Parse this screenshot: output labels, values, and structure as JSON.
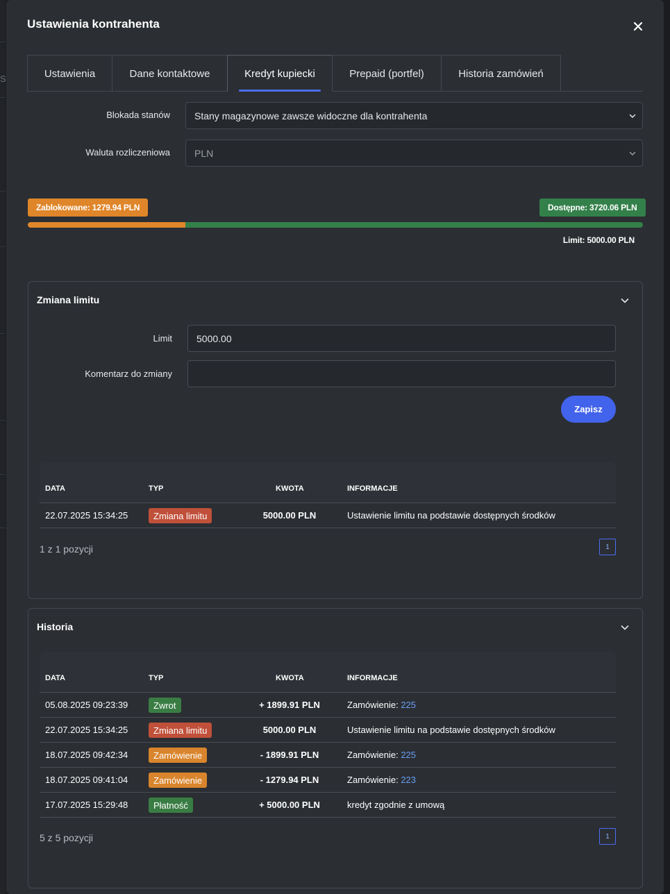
{
  "modal": {
    "title": "Ustawienia kontrahenta",
    "backdrop_text": "St"
  },
  "tabs": [
    {
      "label": "Ustawienia",
      "active": false
    },
    {
      "label": "Dane kontaktowe",
      "active": false
    },
    {
      "label": "Kredyt kupiecki",
      "active": true
    },
    {
      "label": "Prepaid (portfel)",
      "active": false
    },
    {
      "label": "Historia zamówień",
      "active": false
    }
  ],
  "settings": {
    "stock_lock_label": "Blokada stanów",
    "stock_lock_value": "Stany magazynowe zawsze widoczne dla kontrahenta",
    "currency_label": "Waluta rozliczeniowa",
    "currency_value": "PLN"
  },
  "credit": {
    "blocked_label": "Zablokowane: 1279.94 PLN",
    "available_label": "Dostępne: 3720.06 PLN",
    "limit_label": "Limit: 5000.00 PLN",
    "blocked_fraction": 0.256,
    "colors": {
      "blocked": "#e0862a",
      "available": "#34804a"
    }
  },
  "limit_change": {
    "title": "Zmiana limitu",
    "limit_label": "Limit",
    "limit_value": "5000.00",
    "comment_label": "Komentarz do zmiany",
    "comment_value": "",
    "save_label": "Zapisz",
    "table": {
      "headers": [
        "DATA",
        "TYP",
        "KWOTA",
        "INFORMACJE"
      ],
      "rows": [
        {
          "date": "22.07.2025 15:34:25",
          "type": "Zmiana limitu",
          "type_color": "red",
          "amount": "5000.00 PLN",
          "info": "Ustawienie limitu na podstawie dostępnych środków",
          "link": ""
        }
      ]
    },
    "pager_info": "1 z 1 pozycji",
    "page": "1"
  },
  "history": {
    "title": "Historia",
    "table": {
      "headers": [
        "DATA",
        "TYP",
        "KWOTA",
        "INFORMACJE"
      ],
      "rows": [
        {
          "date": "05.08.2025 09:23:39",
          "type": "Zwrot",
          "type_color": "green",
          "amount": "+ 1899.91 PLN",
          "info": "Zamówienie: ",
          "link": "225"
        },
        {
          "date": "22.07.2025 15:34:25",
          "type": "Zmiana limitu",
          "type_color": "red",
          "amount": "5000.00 PLN",
          "info": "Ustawienie limitu na podstawie dostępnych środków",
          "link": ""
        },
        {
          "date": "18.07.2025 09:42:34",
          "type": "Zamówienie",
          "type_color": "orange",
          "amount": "- 1899.91 PLN",
          "info": "Zamówienie: ",
          "link": "225"
        },
        {
          "date": "18.07.2025 09:41:04",
          "type": "Zamówienie",
          "type_color": "orange",
          "amount": "- 1279.94 PLN",
          "info": "Zamówienie: ",
          "link": "223"
        },
        {
          "date": "17.07.2025 15:29:48",
          "type": "Płatność",
          "type_color": "green",
          "amount": "+ 5000.00 PLN",
          "info": "kredyt zgodnie z umową",
          "link": ""
        }
      ]
    },
    "pager_info": "5 z 5 pozycji",
    "page": "1"
  },
  "icons": {
    "close": "close-icon",
    "select_chevron": "chevron-down-icon",
    "collapse": "chevron-down-icon"
  }
}
